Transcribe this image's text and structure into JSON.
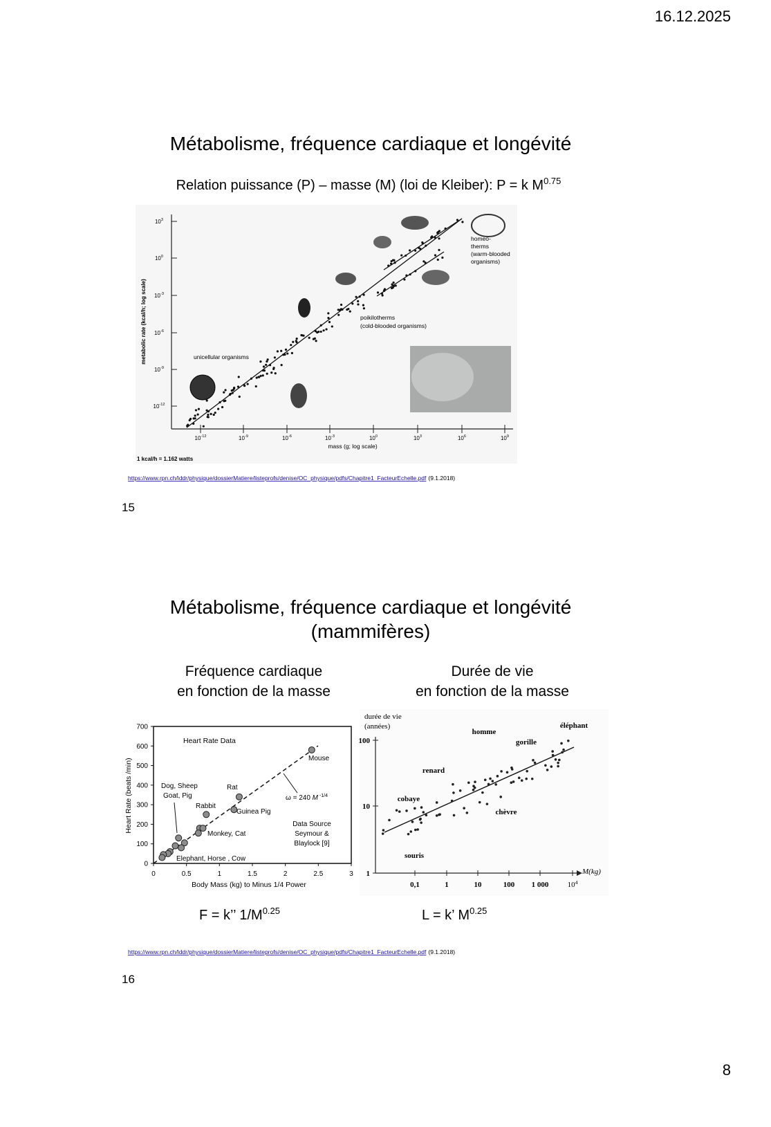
{
  "header": {
    "date": "16.12.2025"
  },
  "slides": [
    {
      "title": "Métabolisme, fréquence cardiaque et longévité",
      "subtitle": {
        "text": "Relation puissance (P) – masse (M) (loi de Kleiber): P = k M",
        "exponent": "0.75"
      },
      "figure": {
        "y_axis_label": "metabolic rate (kcal/h; log scale)",
        "x_axis_label": "mass (g; log scale)",
        "note": "1 kcal/h = 1.162 watts",
        "y_ticks": [
          {
            "base": "10",
            "exp": "3"
          },
          {
            "base": "10",
            "exp": "0"
          },
          {
            "base": "10",
            "exp": "-3"
          },
          {
            "base": "10",
            "exp": "-6"
          },
          {
            "base": "10",
            "exp": "-9"
          },
          {
            "base": "10",
            "exp": "-12"
          }
        ],
        "x_ticks": [
          {
            "base": "10",
            "exp": "-12"
          },
          {
            "base": "10",
            "exp": "-9"
          },
          {
            "base": "10",
            "exp": "-6"
          },
          {
            "base": "10",
            "exp": "-3"
          },
          {
            "base": "10",
            "exp": "0"
          },
          {
            "base": "10",
            "exp": "3"
          },
          {
            "base": "10",
            "exp": "6"
          },
          {
            "base": "10",
            "exp": "9"
          }
        ],
        "unicellular": "unicellular organisms",
        "poikilotherms": [
          "poikilotherms",
          "(cold-blooded organisms)"
        ],
        "homeotherms": [
          "homeo-",
          "therms",
          "(warm-blooded",
          "organisms)"
        ]
      },
      "source": {
        "url": "https://www.rpn.ch/lddr/physique/dossierMatiere/listeprofs/denise/OC_physique/pdfs/Chapitre1_FacteurEchelle.pdf",
        "date": "(9.1.2018)"
      },
      "number": 15
    },
    {
      "title": [
        "Métabolisme, fréquence cardiaque et longévité",
        "(mammifères)"
      ],
      "panels": [
        {
          "caption": [
            "Fréquence cardiaque",
            "en fonction de la masse"
          ],
          "formula": {
            "text": "F = k’’ 1/M",
            "exponent": "0.25"
          },
          "chart": {
            "title": "Heart Rate Data",
            "y_axis_label": "Heart Rate (beats /min)",
            "x_axis_label": "Body Mass (kg) to Minus 1/4 Power",
            "xlim": [
              0,
              3
            ],
            "ylim": [
              0,
              700
            ],
            "xticks": [
              0,
              0.5,
              1,
              1.5,
              2,
              2.5,
              3
            ],
            "yticks": [
              0,
              100,
              200,
              300,
              400,
              500,
              600,
              700
            ],
            "points": [
              {
                "x": 2.4,
                "y": 580
              },
              {
                "x": 1.3,
                "y": 340
              },
              {
                "x": 1.22,
                "y": 275
              },
              {
                "x": 0.8,
                "y": 250
              },
              {
                "x": 0.7,
                "y": 180
              },
              {
                "x": 0.75,
                "y": 180
              },
              {
                "x": 0.68,
                "y": 155
              },
              {
                "x": 0.38,
                "y": 130
              },
              {
                "x": 0.47,
                "y": 105
              },
              {
                "x": 0.33,
                "y": 90
              },
              {
                "x": 0.42,
                "y": 80
              },
              {
                "x": 0.25,
                "y": 60
              },
              {
                "x": 0.22,
                "y": 50
              },
              {
                "x": 0.15,
                "y": 45
              },
              {
                "x": 0.13,
                "y": 30
              }
            ],
            "labels": {
              "mouse": "Mouse",
              "rat": "Rat",
              "rabbit": "Rabbit",
              "guinea_pig": "Guinea Pig",
              "dog": [
                "Dog, Sheep",
                "Goat, Pig"
              ],
              "monkey": "Monkey, Cat",
              "elephant": "Elephant,  Horse , Cow"
            },
            "fit": {
              "text": "ω = 240 ",
              "variable": "M",
              "exponent": " -1/4"
            },
            "data_source": [
              "Data Source",
              "Seymour &",
              "Blaylock [9]"
            ]
          }
        },
        {
          "caption": [
            "Durée de vie",
            "en fonction de la masse"
          ],
          "formula": {
            "text": "L = k’ M",
            "exponent": "0.25"
          },
          "chart": {
            "y_axis_label": [
              "durée de vie",
              "(années)"
            ],
            "x_axis_label": "M(kg)",
            "y_tick_labels": [
              "100",
              "10",
              "1"
            ],
            "x_tick_labels": [
              "0,1",
              "1",
              "10",
              "100",
              "1 000",
              {
                "base": "10",
                "exp": "4"
              }
            ],
            "labels": {
              "homme": "homme",
              "elephant": "éléphant",
              "gorille": "gorille",
              "renard": "renard",
              "cobaye": "cobaye",
              "chevre": "chèvre",
              "souris": "souris"
            }
          }
        }
      ],
      "source": {
        "url": "https://www.rpn.ch/lddr/physique/dossierMatiere/listeprofs/denise/OC_physique/pdfs/Chapitre1_FacteurEchelle.pdf",
        "date": "(9.1.2018)"
      },
      "number": 16
    }
  ],
  "footer": {
    "page": 8
  }
}
